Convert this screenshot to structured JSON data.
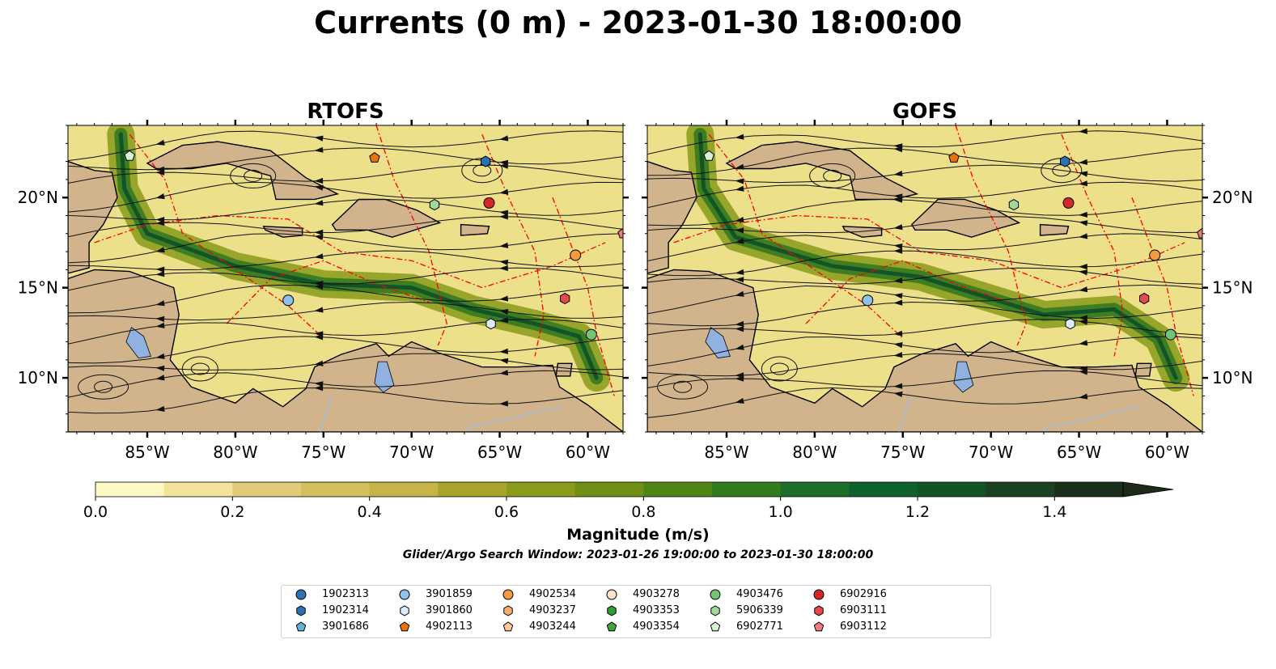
{
  "title": "Currents (0 m) - 2023-01-30 18:00:00",
  "subtitle": "Glider/Argo Search Window: 2023-01-26 19:00:00 to 2023-01-30 18:00:00",
  "panels": [
    {
      "id": "rtofs",
      "title": "RTOFS"
    },
    {
      "id": "gofs",
      "title": "GOFS"
    }
  ],
  "map_extent": {
    "lon": [
      -89.5,
      -58.0
    ],
    "lat": [
      7.0,
      24.0
    ]
  },
  "lon_ticks": [
    {
      "value": -85,
      "label": "85°W"
    },
    {
      "value": -80,
      "label": "80°W"
    },
    {
      "value": -75,
      "label": "75°W"
    },
    {
      "value": -70,
      "label": "70°W"
    },
    {
      "value": -65,
      "label": "65°W"
    },
    {
      "value": -60,
      "label": "60°W"
    }
  ],
  "lat_ticks": [
    {
      "value": 10,
      "label": "10°N"
    },
    {
      "value": 15,
      "label": "15°N"
    },
    {
      "value": 20,
      "label": "20°N"
    }
  ],
  "colorbar": {
    "label": "Magnitude (m/s)",
    "min": 0.0,
    "max": 1.5,
    "step": 0.1,
    "extend": "max",
    "ticks": [
      "0.0",
      "0.2",
      "0.4",
      "0.6",
      "0.8",
      "1.0",
      "1.2",
      "1.4"
    ],
    "colors": [
      "#fdf7c3",
      "#f2e29a",
      "#e0cc78",
      "#d3bf5c",
      "#c7b347",
      "#a7a429",
      "#8a9a1a",
      "#6f8f15",
      "#4f8517",
      "#347a1f",
      "#1c6f2b",
      "#0f6130",
      "#135328",
      "#1a4122",
      "#1a301b"
    ],
    "extend_color": "#1c2a17"
  },
  "colors": {
    "land": "#d2b48c",
    "lake": "#8fb2e0",
    "eez": "#ff0000",
    "river": "#a6bddb"
  },
  "legend": [
    {
      "id": "1902313",
      "color": "#2c72b2",
      "marker": "circle"
    },
    {
      "id": "1902314",
      "color": "#2c72b2",
      "marker": "hexagon"
    },
    {
      "id": "3901686",
      "color": "#6baed6",
      "marker": "pentagon"
    },
    {
      "id": "3901859",
      "color": "#8dc2ea",
      "marker": "circle"
    },
    {
      "id": "3901860",
      "color": "#dbecfb",
      "marker": "hexagon"
    },
    {
      "id": "4902113",
      "color": "#e6730f",
      "marker": "pentagon"
    },
    {
      "id": "4902534",
      "color": "#f39a3e",
      "marker": "circle"
    },
    {
      "id": "4903237",
      "color": "#fdae6b",
      "marker": "hexagon"
    },
    {
      "id": "4903244",
      "color": "#fdc796",
      "marker": "pentagon"
    },
    {
      "id": "4903278",
      "color": "#fde2cc",
      "marker": "circle"
    },
    {
      "id": "4903353",
      "color": "#2ca02c",
      "marker": "hexagon"
    },
    {
      "id": "4903354",
      "color": "#3ca63c",
      "marker": "pentagon"
    },
    {
      "id": "4903476",
      "color": "#74c476",
      "marker": "circle"
    },
    {
      "id": "5906339",
      "color": "#a1d99b",
      "marker": "hexagon"
    },
    {
      "id": "6902771",
      "color": "#d9f0d3",
      "marker": "pentagon"
    },
    {
      "id": "6902916",
      "color": "#d62728",
      "marker": "circle"
    },
    {
      "id": "6903111",
      "color": "#e34a4a",
      "marker": "hexagon"
    },
    {
      "id": "6903112",
      "color": "#f07b7b",
      "marker": "pentagon"
    }
  ],
  "floats_on_map": [
    {
      "id": "6902771",
      "lon": -86.0,
      "lat": 22.3
    },
    {
      "id": "4902113",
      "lon": -72.1,
      "lat": 22.2
    },
    {
      "id": "1902314",
      "lon": -65.8,
      "lat": 22.0
    },
    {
      "id": "5906339",
      "lon": -68.7,
      "lat": 19.6
    },
    {
      "id": "6902916",
      "lon": -65.6,
      "lat": 19.7
    },
    {
      "id": "6903112",
      "lon": -58.0,
      "lat": 18.0
    },
    {
      "id": "4902534",
      "lon": -60.7,
      "lat": 16.8
    },
    {
      "id": "6903111",
      "lon": -61.3,
      "lat": 14.4
    },
    {
      "id": "3901859",
      "lon": -77.0,
      "lat": 14.3
    },
    {
      "id": "3901860",
      "lon": -65.5,
      "lat": 13.0
    },
    {
      "id": "4903476",
      "lon": -59.8,
      "lat": 12.4
    }
  ]
}
